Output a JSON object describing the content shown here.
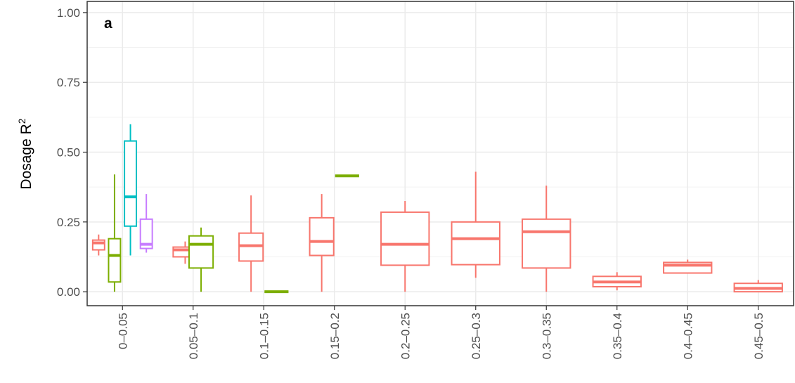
{
  "chart_data": {
    "type": "box",
    "panel_label": "a",
    "xlabel": "",
    "ylabel": "Dosage R",
    "ylabel_superscript": "2",
    "ylim": [
      -0.05,
      1.04
    ],
    "yticks": [
      0.0,
      0.25,
      0.5,
      0.75,
      1.0
    ],
    "ytick_labels": [
      "0.00",
      "0.25",
      "0.50",
      "0.75",
      "1.00"
    ],
    "grid": true,
    "legend": "none",
    "categories": [
      "0–0.05",
      "0.05–0.1",
      "0.1–0.15",
      "0.15–0.2",
      "0.2–0.25",
      "0.25–0.3",
      "0.3–0.35",
      "0.35–0.4",
      "0.4–0.45",
      "0.45–0.5"
    ],
    "group_colors": [
      "#F8766D",
      "#7CAE00",
      "#00BFC4",
      "#C77CFF"
    ],
    "boxes": [
      {
        "category": 0,
        "group": 0,
        "min": 0.13,
        "q1": 0.15,
        "median": 0.175,
        "q3": 0.185,
        "max": 0.205
      },
      {
        "category": 0,
        "group": 1,
        "min": 0.0,
        "q1": 0.035,
        "median": 0.13,
        "q3": 0.19,
        "max": 0.42
      },
      {
        "category": 0,
        "group": 2,
        "min": 0.13,
        "q1": 0.235,
        "median": 0.34,
        "q3": 0.54,
        "max": 0.6
      },
      {
        "category": 0,
        "group": 3,
        "min": 0.14,
        "q1": 0.155,
        "median": 0.17,
        "q3": 0.26,
        "max": 0.35
      },
      {
        "category": 1,
        "group": 0,
        "min": 0.1,
        "q1": 0.125,
        "median": 0.15,
        "q3": 0.16,
        "max": 0.18
      },
      {
        "category": 1,
        "group": 1,
        "min": 0.0,
        "q1": 0.085,
        "median": 0.17,
        "q3": 0.2,
        "max": 0.23
      },
      {
        "category": 2,
        "group": 0,
        "min": 0.0,
        "q1": 0.11,
        "median": 0.165,
        "q3": 0.21,
        "max": 0.345
      },
      {
        "category": 2,
        "group": 1,
        "min": 0.0,
        "q1": 0.0,
        "median": 0.0,
        "q3": 0.0,
        "max": 0.0
      },
      {
        "category": 3,
        "group": 0,
        "min": 0.0,
        "q1": 0.13,
        "median": 0.18,
        "q3": 0.265,
        "max": 0.35
      },
      {
        "category": 3,
        "group": 1,
        "min": 0.415,
        "q1": 0.415,
        "median": 0.415,
        "q3": 0.415,
        "max": 0.415
      },
      {
        "category": 4,
        "group": 0,
        "min": 0.0,
        "q1": 0.095,
        "median": 0.17,
        "q3": 0.285,
        "max": 0.325
      },
      {
        "category": 5,
        "group": 0,
        "min": 0.05,
        "q1": 0.097,
        "median": 0.19,
        "q3": 0.25,
        "max": 0.43
      },
      {
        "category": 6,
        "group": 0,
        "min": 0.0,
        "q1": 0.085,
        "median": 0.215,
        "q3": 0.26,
        "max": 0.38
      },
      {
        "category": 7,
        "group": 0,
        "min": 0.005,
        "q1": 0.018,
        "median": 0.035,
        "q3": 0.055,
        "max": 0.07
      },
      {
        "category": 8,
        "group": 0,
        "min": 0.067,
        "q1": 0.067,
        "median": 0.095,
        "q3": 0.105,
        "max": 0.115
      },
      {
        "category": 9,
        "group": 0,
        "min": 0.0,
        "q1": 0.0,
        "median": 0.012,
        "q3": 0.03,
        "max": 0.042
      }
    ]
  }
}
